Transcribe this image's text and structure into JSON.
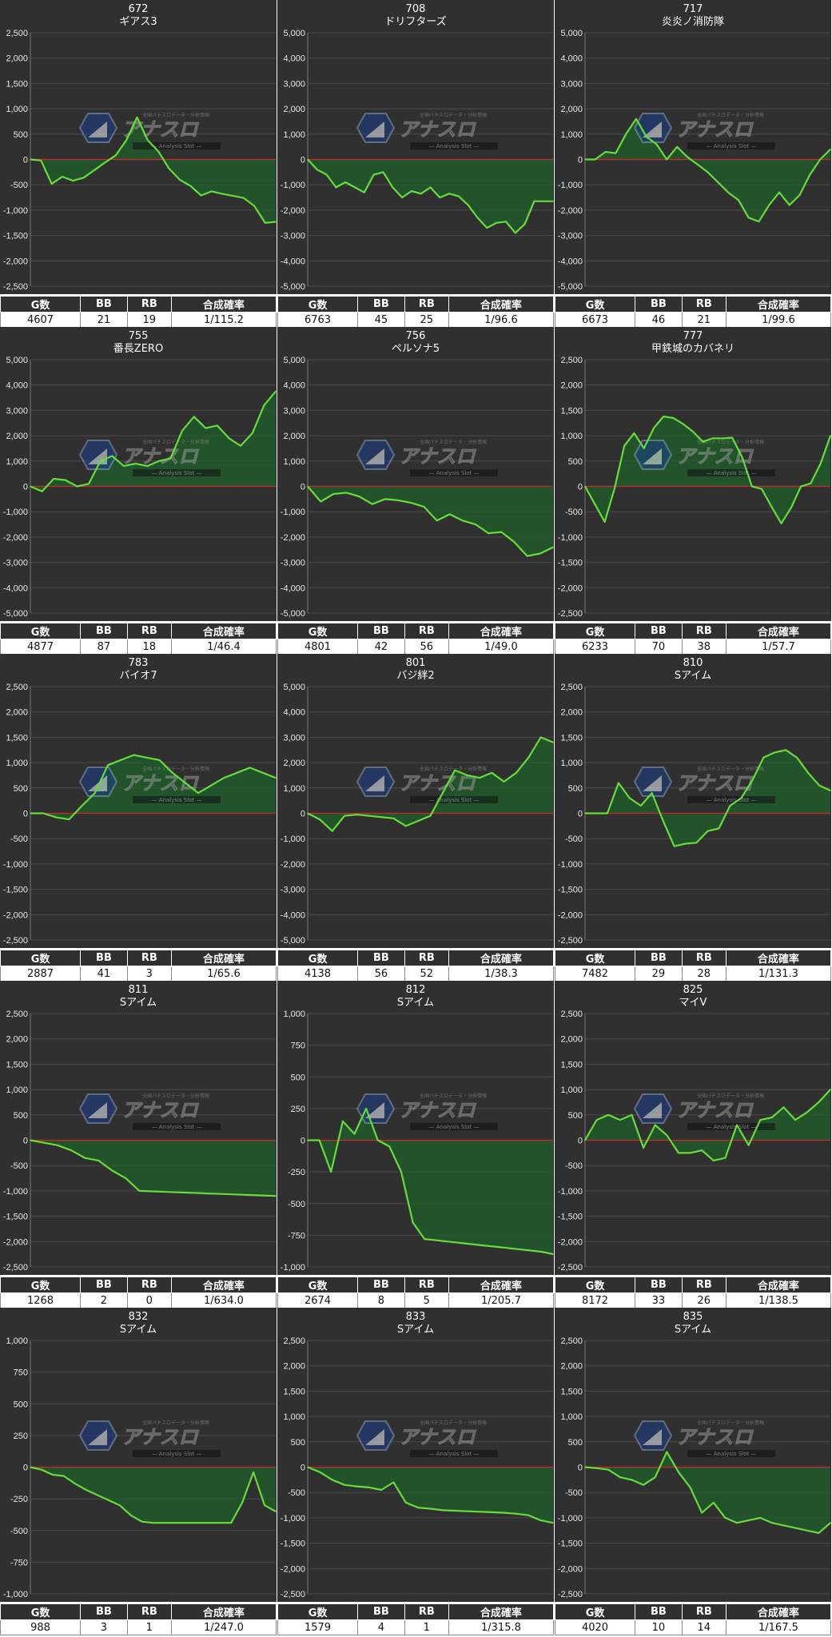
{
  "table_headers": [
    "G数",
    "BB",
    "RB",
    "合成確率"
  ],
  "watermark": {
    "title": "アナスロ",
    "subtitle": "Analysis Slot",
    "top_text": "全国パチスロデータ・分析情報"
  },
  "colors": {
    "plot_bg": "#303030",
    "line": "#66dd3a",
    "fill": "#1f5f2a",
    "zero_line": "#cc2a2a",
    "grid": "#4a4a4a"
  },
  "chart_data": [
    {
      "type": "area",
      "title": "672",
      "subtitle": "ギアス3",
      "ylim": [
        -2500,
        2500
      ],
      "yticks": [
        2500,
        2000,
        1500,
        1000,
        500,
        0,
        -500,
        -1000,
        -1500,
        -2000,
        -2500
      ],
      "values": [
        0,
        -20,
        -480,
        -340,
        -420,
        -360,
        -210,
        -60,
        80,
        380,
        830,
        380,
        160,
        -180,
        -400,
        -520,
        -710,
        -630,
        -680,
        -720,
        -760,
        -920,
        -1250,
        -1230
      ],
      "stats": {
        "g": "4607",
        "bb": "21",
        "rb": "19",
        "prob": "1/115.2"
      }
    },
    {
      "type": "area",
      "title": "708",
      "subtitle": "ドリフターズ",
      "ylim": [
        -5000,
        5000
      ],
      "yticks": [
        5000,
        4000,
        3000,
        2000,
        1000,
        0,
        -1000,
        -2000,
        -3000,
        -4000,
        -5000
      ],
      "values": [
        0,
        -400,
        -600,
        -1100,
        -900,
        -1100,
        -1300,
        -600,
        -500,
        -1100,
        -1500,
        -1250,
        -1350,
        -1100,
        -1500,
        -1350,
        -1450,
        -1800,
        -2300,
        -2700,
        -2500,
        -2450,
        -2900,
        -2550,
        -1650,
        -1650,
        -1650
      ],
      "stats": {
        "g": "6763",
        "bb": "45",
        "rb": "25",
        "prob": "1/96.6"
      }
    },
    {
      "type": "area",
      "title": "717",
      "subtitle": "炎炎ノ消防隊",
      "ylim": [
        -5000,
        5000
      ],
      "yticks": [
        5000,
        4000,
        3000,
        2000,
        1000,
        0,
        -1000,
        -2000,
        -3000,
        -4000,
        -5000
      ],
      "values": [
        0,
        0,
        300,
        250,
        1000,
        1600,
        900,
        600,
        0,
        500,
        100,
        -200,
        -500,
        -900,
        -1300,
        -1600,
        -2300,
        -2450,
        -1800,
        -1300,
        -1800,
        -1400,
        -600,
        0,
        400
      ],
      "stats": {
        "g": "6673",
        "bb": "46",
        "rb": "21",
        "prob": "1/99.6"
      }
    },
    {
      "type": "area",
      "title": "755",
      "subtitle": "番長ZERO",
      "ylim": [
        -5000,
        5000
      ],
      "yticks": [
        5000,
        4000,
        3000,
        2000,
        1000,
        0,
        -1000,
        -2000,
        -3000,
        -4000,
        -5000
      ],
      "values": [
        0,
        -200,
        300,
        250,
        0,
        100,
        1000,
        1200,
        800,
        900,
        800,
        1000,
        1100,
        2200,
        2750,
        2300,
        2400,
        1900,
        1600,
        2100,
        3200,
        3750
      ],
      "stats": {
        "g": "4877",
        "bb": "87",
        "rb": "18",
        "prob": "1/46.4"
      }
    },
    {
      "type": "area",
      "title": "756",
      "subtitle": "ペルソナ5",
      "ylim": [
        -5000,
        5000
      ],
      "yticks": [
        5000,
        4000,
        3000,
        2000,
        1000,
        0,
        -1000,
        -2000,
        -3000,
        -4000,
        -5000
      ],
      "values": [
        0,
        -600,
        -300,
        -250,
        -400,
        -700,
        -500,
        -550,
        -650,
        -800,
        -1350,
        -1100,
        -1350,
        -1500,
        -1850,
        -1800,
        -2200,
        -2750,
        -2650,
        -2400
      ],
      "stats": {
        "g": "4801",
        "bb": "42",
        "rb": "56",
        "prob": "1/49.0"
      }
    },
    {
      "type": "area",
      "title": "777",
      "subtitle": "甲鉄城のカバネリ",
      "ylim": [
        -2500,
        2500
      ],
      "yticks": [
        2500,
        2000,
        1500,
        1000,
        500,
        0,
        -500,
        -1000,
        -1500,
        -2000,
        -2500
      ],
      "values": [
        0,
        -350,
        -700,
        -50,
        800,
        1050,
        750,
        1150,
        1380,
        1350,
        1230,
        1080,
        880,
        950,
        950,
        960,
        580,
        0,
        -50,
        -400,
        -730,
        -420,
        0,
        60,
        450,
        1000
      ],
      "stats": {
        "g": "6233",
        "bb": "70",
        "rb": "38",
        "prob": "1/57.7"
      }
    },
    {
      "type": "area",
      "title": "783",
      "subtitle": "バイオ7",
      "ylim": [
        -2500,
        2500
      ],
      "yticks": [
        2500,
        2000,
        1500,
        1000,
        500,
        0,
        -500,
        -1000,
        -1500,
        -2000,
        -2500
      ],
      "values": [
        0,
        0,
        -80,
        -120,
        150,
        400,
        950,
        1050,
        1150,
        1100,
        1050,
        800,
        600,
        400,
        550,
        700,
        800,
        900,
        800,
        700
      ],
      "stats": {
        "g": "2887",
        "bb": "41",
        "rb": "3",
        "prob": "1/65.6"
      }
    },
    {
      "type": "area",
      "title": "801",
      "subtitle": "バジ絆2",
      "ylim": [
        -5000,
        5000
      ],
      "yticks": [
        5000,
        4000,
        3000,
        2000,
        1000,
        0,
        -1000,
        -2000,
        -3000,
        -4000,
        -5000
      ],
      "values": [
        0,
        -250,
        -700,
        -100,
        -50,
        -100,
        -150,
        -200,
        -500,
        -300,
        -100,
        800,
        1700,
        1500,
        1400,
        1600,
        1250,
        1600,
        2200,
        3000,
        2800
      ],
      "stats": {
        "g": "4138",
        "bb": "56",
        "rb": "52",
        "prob": "1/38.3"
      }
    },
    {
      "type": "area",
      "title": "810",
      "subtitle": "Sアイム",
      "ylim": [
        -2500,
        2500
      ],
      "yticks": [
        2500,
        2000,
        1500,
        1000,
        500,
        0,
        -500,
        -1000,
        -1500,
        -2000,
        -2500
      ],
      "values": [
        0,
        0,
        0,
        600,
        300,
        150,
        400,
        -150,
        -650,
        -600,
        -580,
        -350,
        -300,
        150,
        300,
        650,
        1100,
        1200,
        1250,
        1100,
        800,
        550,
        450
      ],
      "stats": {
        "g": "7482",
        "bb": "29",
        "rb": "28",
        "prob": "1/131.3"
      }
    },
    {
      "type": "area",
      "title": "811",
      "subtitle": "Sアイム",
      "ylim": [
        -2500,
        2500
      ],
      "yticks": [
        2500,
        2000,
        1500,
        1000,
        500,
        0,
        -500,
        -1000,
        -1500,
        -2000,
        -2500
      ],
      "values": [
        0,
        -50,
        -100,
        -200,
        -350,
        -400,
        -600,
        -750,
        -1000,
        -1010,
        -1020,
        -1030,
        -1040,
        -1050,
        -1060,
        -1070,
        -1080,
        -1090,
        -1100
      ],
      "stats": {
        "g": "1268",
        "bb": "2",
        "rb": "0",
        "prob": "1/634.0"
      }
    },
    {
      "type": "area",
      "title": "812",
      "subtitle": "Sアイム",
      "ylim": [
        -1000,
        1000
      ],
      "yticks": [
        1000,
        750,
        500,
        250,
        0,
        -250,
        -500,
        -750,
        -1000
      ],
      "values": [
        0,
        0,
        -250,
        150,
        50,
        250,
        0,
        -50,
        -250,
        -650,
        -780,
        -790,
        -800,
        -810,
        -820,
        -830,
        -840,
        -850,
        -860,
        -870,
        -880,
        -900
      ],
      "stats": {
        "g": "2674",
        "bb": "8",
        "rb": "5",
        "prob": "1/205.7"
      }
    },
    {
      "type": "area",
      "title": "825",
      "subtitle": "マイV",
      "ylim": [
        -2500,
        2500
      ],
      "yticks": [
        2500,
        2000,
        1500,
        1000,
        500,
        0,
        -500,
        -1000,
        -1500,
        -2000,
        -2500
      ],
      "values": [
        0,
        400,
        500,
        400,
        500,
        -150,
        300,
        100,
        -250,
        -250,
        -200,
        -400,
        -350,
        300,
        -100,
        400,
        450,
        650,
        400,
        550,
        750,
        1000
      ],
      "stats": {
        "g": "8172",
        "bb": "33",
        "rb": "26",
        "prob": "1/138.5"
      }
    },
    {
      "type": "area",
      "title": "832",
      "subtitle": "Sアイム",
      "ylim": [
        -1000,
        1000
      ],
      "yticks": [
        1000,
        750,
        500,
        250,
        0,
        -250,
        -500,
        -750,
        -1000
      ],
      "values": [
        0,
        -20,
        -60,
        -70,
        -130,
        -180,
        -220,
        -260,
        -300,
        -380,
        -430,
        -440,
        -440,
        -440,
        -440,
        -440,
        -440,
        -440,
        -440,
        -280,
        -40,
        -300,
        -350
      ],
      "stats": {
        "g": "988",
        "bb": "3",
        "rb": "1",
        "prob": "1/247.0"
      }
    },
    {
      "type": "area",
      "title": "833",
      "subtitle": "Sアイム",
      "ylim": [
        -2500,
        2500
      ],
      "yticks": [
        2500,
        2000,
        1500,
        1000,
        500,
        0,
        -500,
        -1000,
        -1500,
        -2000,
        -2500
      ],
      "values": [
        0,
        -100,
        -250,
        -350,
        -380,
        -400,
        -450,
        -300,
        -700,
        -800,
        -820,
        -850,
        -860,
        -870,
        -880,
        -890,
        -900,
        -920,
        -950,
        -1050,
        -1100
      ],
      "stats": {
        "g": "1579",
        "bb": "4",
        "rb": "1",
        "prob": "1/315.8"
      }
    },
    {
      "type": "area",
      "title": "835",
      "subtitle": "Sアイム",
      "ylim": [
        -2500,
        2500
      ],
      "yticks": [
        2500,
        2000,
        1500,
        1000,
        500,
        0,
        -500,
        -1000,
        -1500,
        -2000,
        -2500
      ],
      "values": [
        0,
        -20,
        -50,
        -200,
        -250,
        -350,
        -200,
        300,
        -100,
        -400,
        -900,
        -700,
        -1000,
        -1100,
        -1050,
        -1000,
        -1100,
        -1150,
        -1200,
        -1250,
        -1300,
        -1100
      ],
      "stats": {
        "g": "4020",
        "bb": "10",
        "rb": "14",
        "prob": "1/167.5"
      }
    }
  ]
}
